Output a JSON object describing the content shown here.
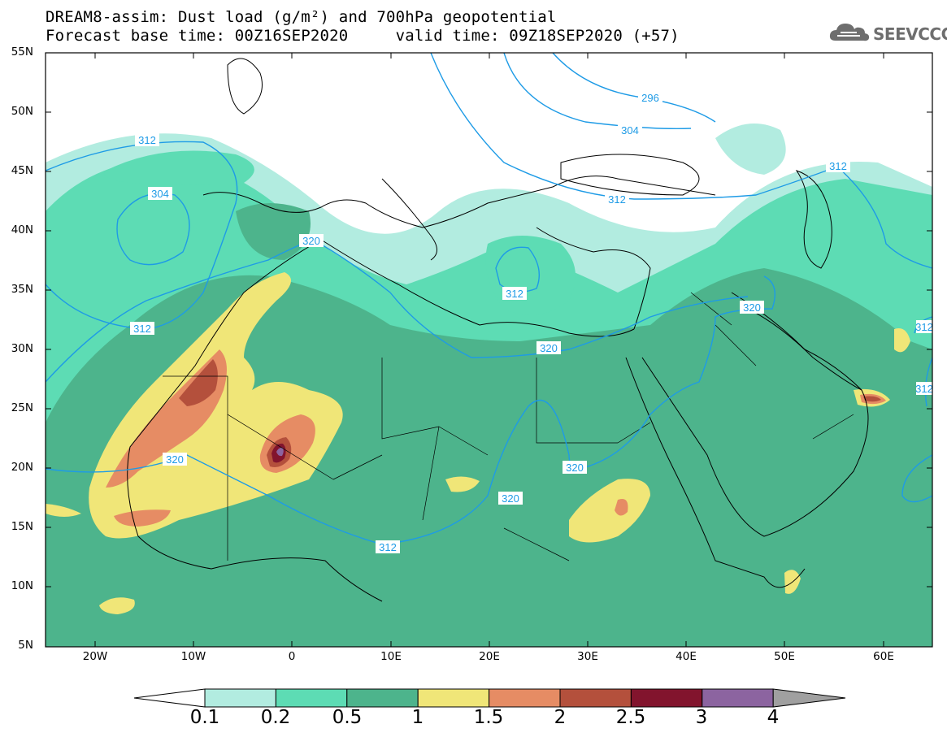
{
  "title": {
    "line1": "DREAM8-assim: Dust load (g/m²) and 700hPa geopotential",
    "line2": "Forecast base time: 00Z16SEP2020     valid time: 09Z18SEP2020 (+57)"
  },
  "logo": {
    "text": "SEEVCCC",
    "icon": "cloud-icon"
  },
  "axes": {
    "lat_labels": [
      "55N",
      "50N",
      "45N",
      "40N",
      "35N",
      "30N",
      "25N",
      "20N",
      "15N",
      "10N",
      "5N"
    ],
    "lon_labels": [
      "20W",
      "10W",
      "0",
      "10E",
      "20E",
      "30E",
      "40E",
      "50E",
      "60E"
    ]
  },
  "contours": {
    "color": "#1e9be6",
    "labels": [
      "296",
      "304",
      "304",
      "312",
      "312",
      "312",
      "312",
      "320",
      "320",
      "320",
      "320",
      "320",
      "320",
      "312",
      "312",
      "312"
    ]
  },
  "legend": {
    "labels": [
      "0.1",
      "0.2",
      "0.5",
      "1",
      "1.5",
      "2",
      "2.5",
      "3",
      "4"
    ],
    "colors": [
      "#b2ece0",
      "#5ddcb4",
      "#4db48c",
      "#f0e678",
      "#e68c64",
      "#b4503c",
      "#82142d",
      "#8c64a0"
    ],
    "under_color": "#ffffff",
    "over_color": "#a0a0a0"
  },
  "fill_colors": {
    "c1": "#b2ece0",
    "c2": "#5ddcb4",
    "c3": "#4db48c",
    "c4": "#f0e678",
    "c5": "#e68c64",
    "c6": "#b4503c",
    "c7": "#82142d",
    "c8": "#8c64a0"
  }
}
